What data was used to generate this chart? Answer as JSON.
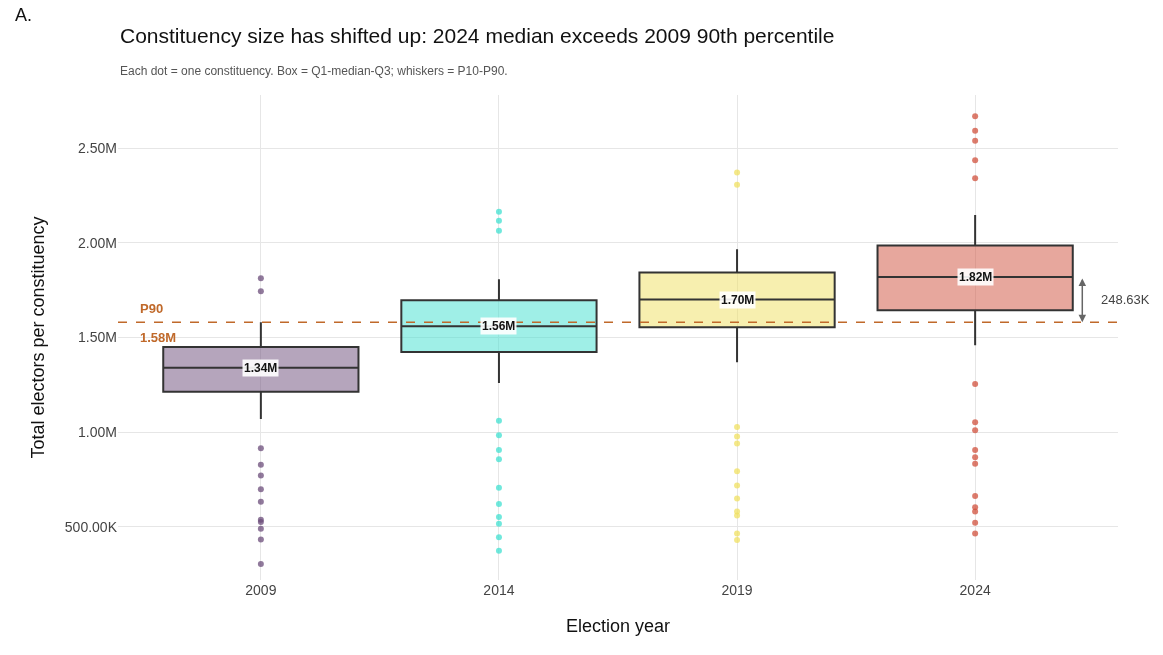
{
  "chart_data": {
    "type": "box",
    "title": "Constituency size has shifted up: 2024 median exceeds 2009 90th percentile",
    "subtitle": "Each dot = one constituency. Box = Q1-median-Q3; whiskers = P10-P90.",
    "xlabel": "Election year",
    "ylabel": "Total electors per constituency",
    "categories": [
      "2009",
      "2014",
      "2019",
      "2024"
    ],
    "colors": [
      "#6b4c7a",
      "#40e0d0",
      "#f0e060",
      "#d0503c"
    ],
    "boxes": [
      {
        "low": 1070000,
        "q1": 1214000,
        "median": 1340000,
        "q3": 1450000,
        "high": 1580000,
        "outliers": [
          305000,
          434000,
          491000,
          526000,
          538000,
          633000,
          699000,
          771000,
          828000,
          915000,
          1744000,
          1813000
        ]
      },
      {
        "low": 1260000,
        "q1": 1424000,
        "median": 1560000,
        "q3": 1697000,
        "high": 1808000,
        "outliers": [
          374000,
          445000,
          517000,
          552000,
          621000,
          707000,
          858000,
          906000,
          984000,
          1061000,
          2064000,
          2116000,
          2164000
        ]
      },
      {
        "low": 1369000,
        "q1": 1554000,
        "median": 1700000,
        "q3": 1843000,
        "high": 1966000,
        "outliers": [
          431000,
          465000,
          561000,
          581000,
          650000,
          719000,
          794000,
          941000,
          978000,
          1027000,
          2306000,
          2371000
        ]
      },
      {
        "low": 1459000,
        "q1": 1644000,
        "median": 1820000,
        "q3": 1986000,
        "high": 2147000,
        "outliers": [
          465000,
          522000,
          581000,
          604000,
          664000,
          833000,
          868000,
          906000,
          1010000,
          1053000,
          1255000,
          2340000,
          2435000,
          2539000,
          2591000,
          2668000
        ]
      }
    ],
    "ylim": [
      220000,
      2780000
    ],
    "yticks": [
      {
        "value": 500000,
        "label": "500.00K"
      },
      {
        "value": 1000000,
        "label": "1.00M"
      },
      {
        "value": 1500000,
        "label": "1.50M"
      },
      {
        "value": 2000000,
        "label": "2.00M"
      },
      {
        "value": 2500000,
        "label": "2.50M"
      }
    ],
    "ref_lines": [
      {
        "axis": "y",
        "value": 1580000,
        "label": "P90",
        "color": "#c0692a",
        "line_style": "dashed"
      }
    ],
    "annotations": [
      "A.",
      "1.58M",
      "248.63K",
      {
        "text": "1.34M",
        "x": "2009",
        "y": 1340000
      },
      {
        "text": "1.56M",
        "x": "2014",
        "y": 1560000
      },
      {
        "text": "1.70M",
        "x": "2019",
        "y": 1700000
      },
      {
        "text": "1.82M",
        "x": "2024",
        "y": 1820000
      }
    ],
    "grid": true,
    "marker": "circle"
  }
}
